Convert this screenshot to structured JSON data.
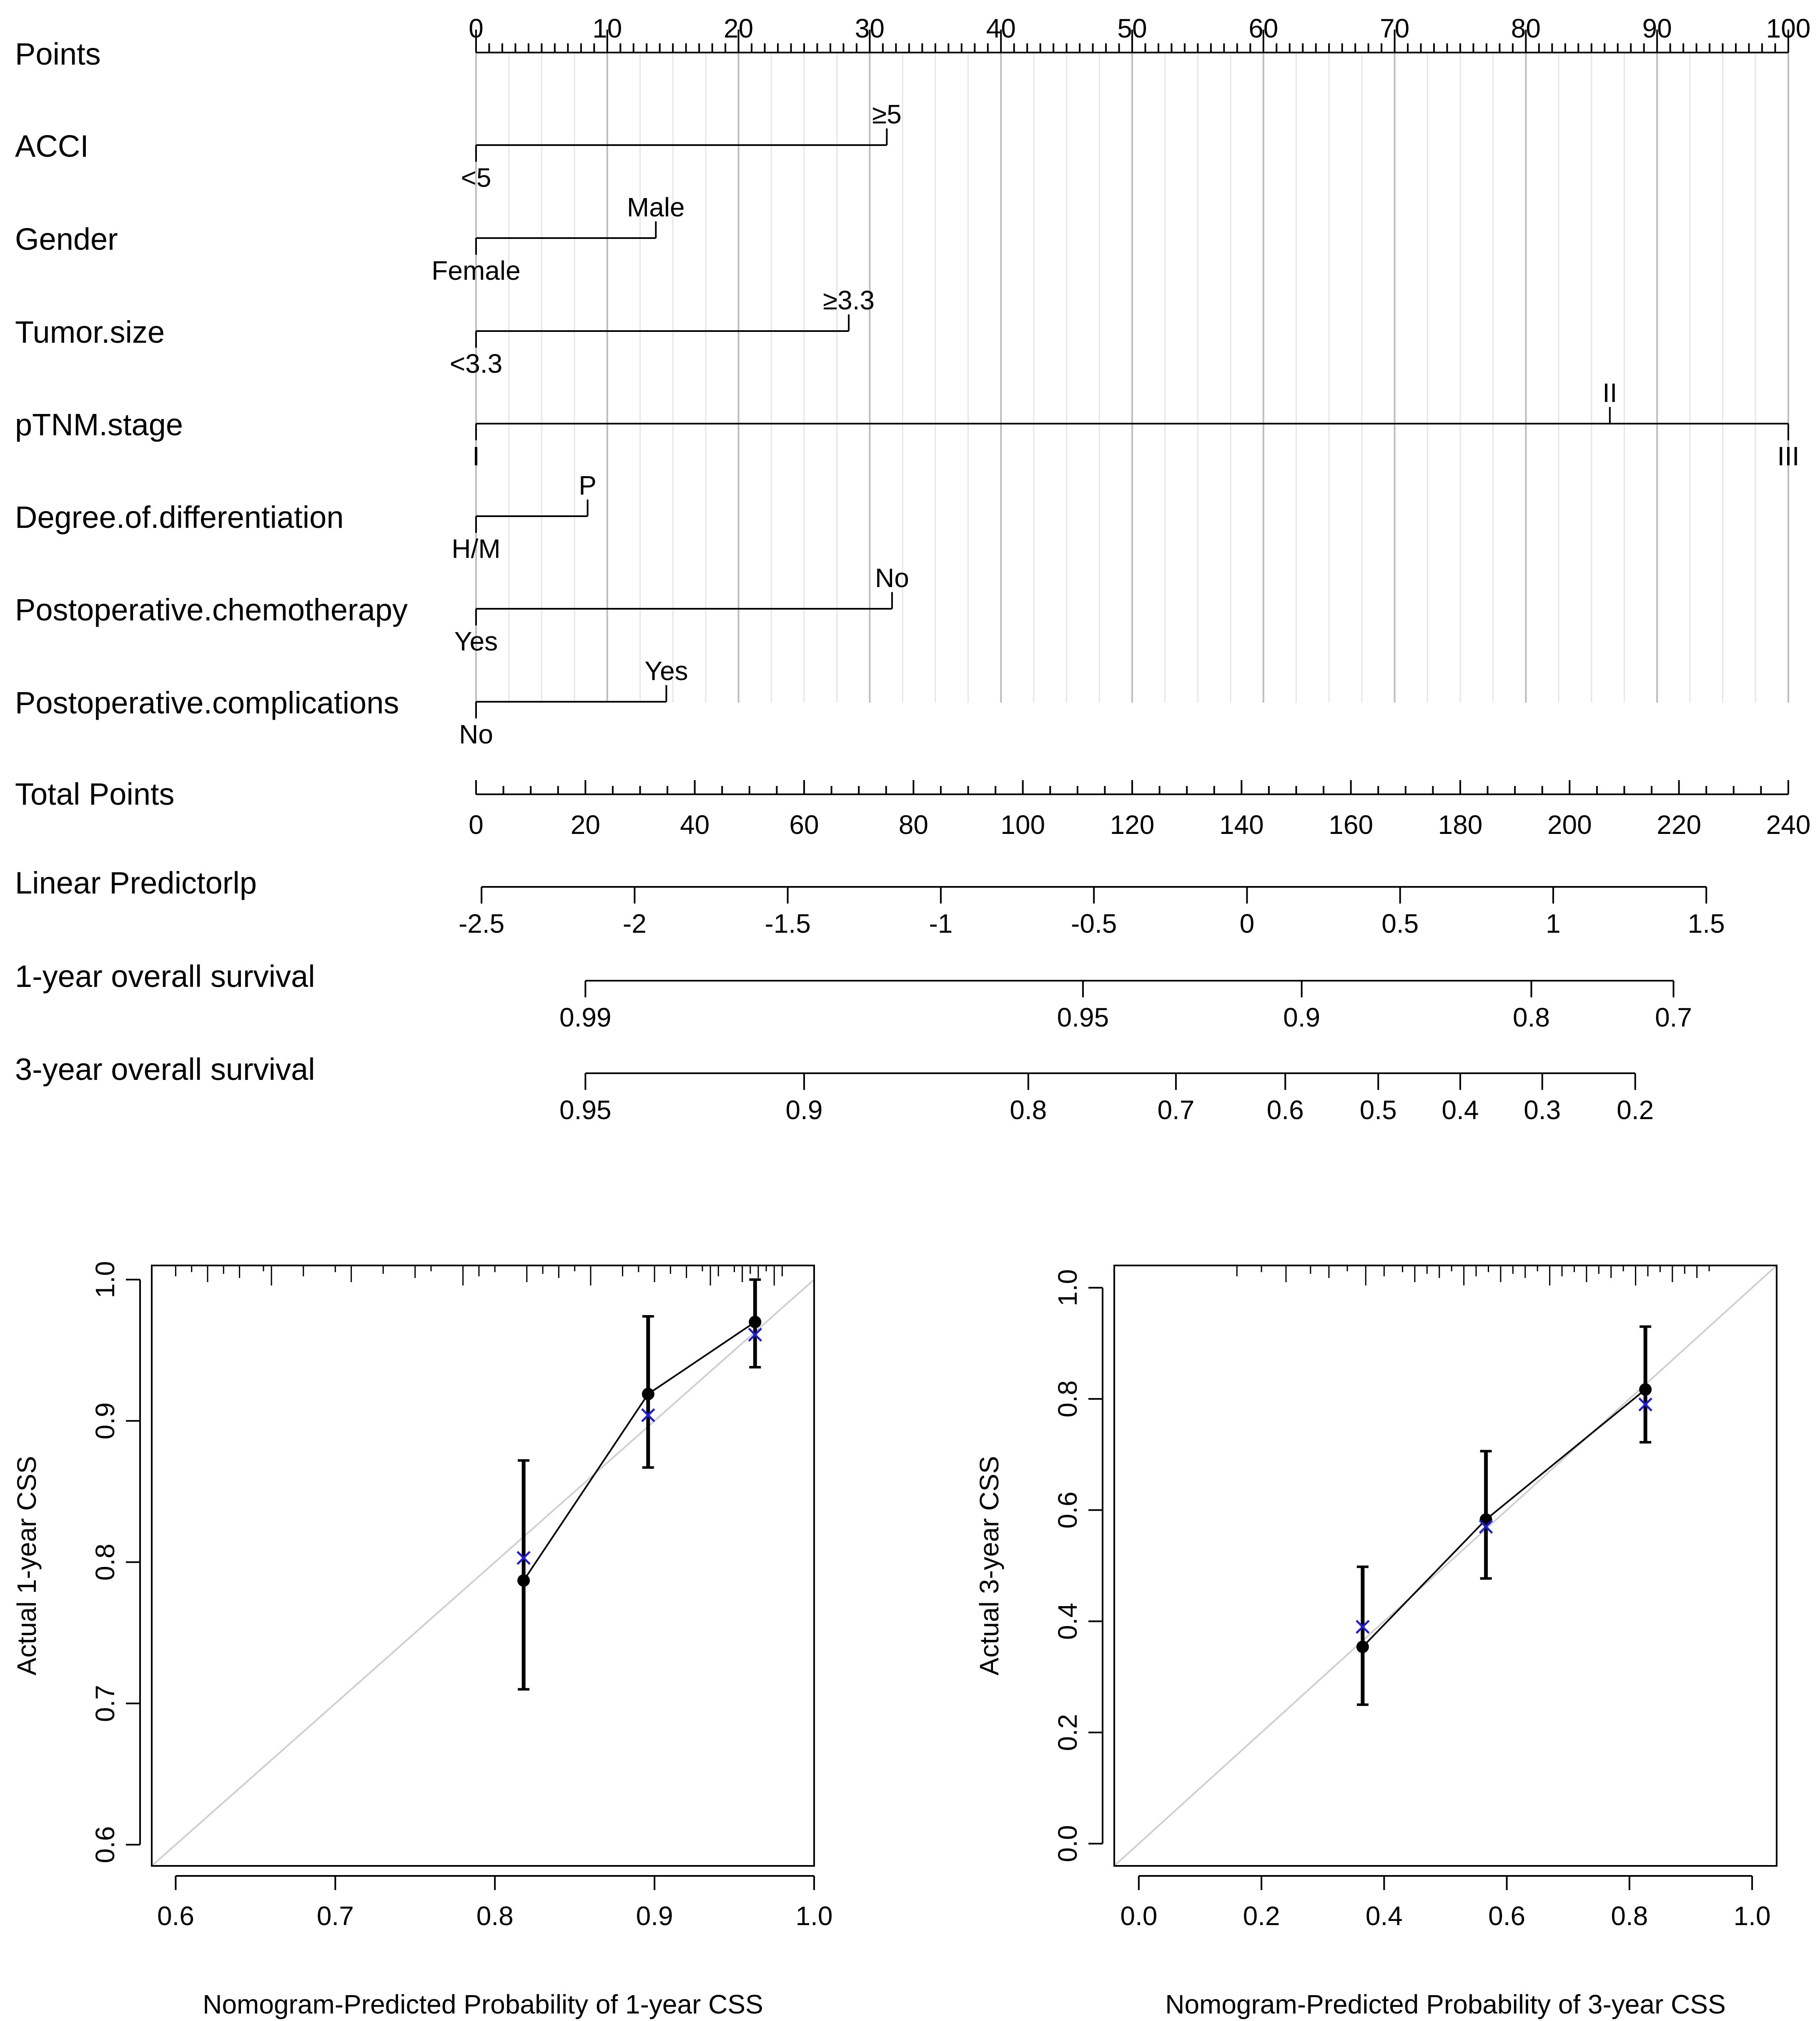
{
  "nomogram": {
    "points_scale": {
      "label": "Points",
      "range": [
        0,
        100
      ],
      "major_ticks": [
        0,
        10,
        20,
        30,
        40,
        50,
        60,
        70,
        80,
        90,
        100
      ],
      "tick_labels": [
        "0",
        "10",
        "20",
        "30",
        "40",
        "50",
        "60",
        "70",
        "80",
        "90",
        "100"
      ]
    },
    "variables": [
      {
        "name": "ACCI",
        "levels": [
          {
            "label": "<5",
            "points": 0
          },
          {
            "label": "≥5",
            "points": 31.3
          }
        ]
      },
      {
        "name": "Gender",
        "levels": [
          {
            "label": "Female",
            "points": 0
          },
          {
            "label": "Male",
            "points": 13.7
          }
        ]
      },
      {
        "name": "Tumor.size",
        "levels": [
          {
            "label": "<3.3",
            "points": 0
          },
          {
            "label": "≥3.3",
            "points": 28.4
          }
        ]
      },
      {
        "name": "pTNM.stage",
        "levels": [
          {
            "label": "I",
            "points": 0
          },
          {
            "label": "II",
            "points": 86.4
          },
          {
            "label": "III",
            "points": 100
          }
        ]
      },
      {
        "name": "Degree.of.differentiation",
        "levels": [
          {
            "label": "H/M",
            "points": 0
          },
          {
            "label": "P",
            "points": 8.5
          }
        ]
      },
      {
        "name": "Postoperative.chemotherapy",
        "levels": [
          {
            "label": "Yes",
            "points": 0
          },
          {
            "label": "No",
            "points": 31.7
          }
        ]
      },
      {
        "name": "Postoperative.complications",
        "levels": [
          {
            "label": "No",
            "points": 0
          },
          {
            "label": "Yes",
            "points": 14.5
          }
        ]
      }
    ],
    "total_points": {
      "label": "Total Points",
      "range": [
        0,
        240
      ],
      "major_ticks": [
        0,
        20,
        40,
        60,
        80,
        100,
        120,
        140,
        160,
        180,
        200,
        220,
        240
      ],
      "tick_labels": [
        "0",
        "20",
        "40",
        "60",
        "80",
        "100",
        "120",
        "140",
        "160",
        "180",
        "200",
        "220",
        "240"
      ]
    },
    "linear_predictor": {
      "label": "Linear Predictorlp",
      "ticks": [
        {
          "label": "-2.5",
          "total_points": 1
        },
        {
          "label": "-2",
          "total_points": 29
        },
        {
          "label": "-1.5",
          "total_points": 57
        },
        {
          "label": "-1",
          "total_points": 85
        },
        {
          "label": "-0.5",
          "total_points": 113
        },
        {
          "label": "0",
          "total_points": 141
        },
        {
          "label": "0.5",
          "total_points": 169
        },
        {
          "label": "1",
          "total_points": 197
        },
        {
          "label": "1.5",
          "total_points": 225
        }
      ]
    },
    "survival_1yr": {
      "label": "1-year overall survival",
      "ticks": [
        {
          "label": "0.99",
          "total_points": 20
        },
        {
          "label": "0.95",
          "total_points": 111
        },
        {
          "label": "0.9",
          "total_points": 151
        },
        {
          "label": "0.8",
          "total_points": 193
        },
        {
          "label": "0.7",
          "total_points": 219
        }
      ]
    },
    "survival_3yr": {
      "label": "3-year overall survival",
      "ticks": [
        {
          "label": "0.95",
          "total_points": 20
        },
        {
          "label": "0.9",
          "total_points": 60
        },
        {
          "label": "0.8",
          "total_points": 101
        },
        {
          "label": "0.7",
          "total_points": 128
        },
        {
          "label": "0.6",
          "total_points": 148
        },
        {
          "label": "0.5",
          "total_points": 165
        },
        {
          "label": "0.4",
          "total_points": 180
        },
        {
          "label": "0.3",
          "total_points": 195
        },
        {
          "label": "0.2",
          "total_points": 212
        }
      ]
    }
  },
  "chart_data": [
    {
      "type": "scatter",
      "title": "",
      "xlabel": "Nomogram-Predicted Probability of 1-year CSS",
      "ylabel": "Actual 1-year CSS",
      "xlim": [
        0.585,
        1.0
      ],
      "ylim": [
        0.585,
        1.01
      ],
      "xticks": [
        0.6,
        0.7,
        0.8,
        0.9,
        1.0
      ],
      "xtick_labels": [
        "0.6",
        "0.7",
        "0.8",
        "0.9",
        "1.0"
      ],
      "yticks": [
        0.6,
        0.7,
        0.8,
        0.9,
        1.0
      ],
      "ytick_labels": [
        "0.6",
        "0.7",
        "0.8",
        "0.9",
        "1.0"
      ],
      "reference_line": "y = x",
      "series": [
        {
          "name": "observed",
          "marker": "dot",
          "x": [
            0.818,
            0.896,
            0.963
          ],
          "y": [
            0.787,
            0.919,
            0.97
          ],
          "lower": [
            0.71,
            0.867,
            0.938
          ],
          "upper": [
            0.872,
            0.974,
            1.0
          ]
        },
        {
          "name": "bias-corrected",
          "marker": "x",
          "color": "#1f1fd0",
          "x": [
            0.818,
            0.896,
            0.963
          ],
          "y": [
            0.803,
            0.904,
            0.961
          ]
        }
      ],
      "rug": [
        0.6,
        0.61,
        0.62,
        0.63,
        0.64,
        0.655,
        0.66,
        0.68,
        0.7,
        0.71,
        0.73,
        0.75,
        0.76,
        0.78,
        0.79,
        0.8,
        0.82,
        0.83,
        0.84,
        0.85,
        0.86,
        0.88,
        0.89,
        0.9,
        0.91,
        0.92,
        0.93,
        0.935,
        0.94,
        0.95,
        0.955,
        0.96,
        0.965,
        0.97,
        0.975,
        0.98
      ]
    },
    {
      "type": "scatter",
      "title": "",
      "xlabel": "Nomogram-Predicted Probability of 3-year CSS",
      "ylabel": "Actual 3-year CSS",
      "xlim": [
        -0.04,
        1.04
      ],
      "ylim": [
        -0.04,
        1.04
      ],
      "xticks": [
        0.0,
        0.2,
        0.4,
        0.6,
        0.8,
        1.0
      ],
      "xtick_labels": [
        "0.0",
        "0.2",
        "0.4",
        "0.6",
        "0.8",
        "1.0"
      ],
      "yticks": [
        0.0,
        0.2,
        0.4,
        0.6,
        0.8,
        1.0
      ],
      "ytick_labels": [
        "0.0",
        "0.2",
        "0.4",
        "0.6",
        "0.8",
        "1.0"
      ],
      "reference_line": "y = x",
      "series": [
        {
          "name": "observed",
          "marker": "dot",
          "x": [
            0.365,
            0.566,
            0.826
          ],
          "y": [
            0.354,
            0.583,
            0.817
          ],
          "lower": [
            0.25,
            0.477,
            0.722
          ],
          "upper": [
            0.498,
            0.706,
            0.93
          ]
        },
        {
          "name": "bias-corrected",
          "marker": "x",
          "color": "#1f1fd0",
          "x": [
            0.365,
            0.566,
            0.826
          ],
          "y": [
            0.39,
            0.57,
            0.79
          ]
        }
      ],
      "rug": [
        0.16,
        0.2,
        0.24,
        0.28,
        0.31,
        0.34,
        0.37,
        0.4,
        0.43,
        0.45,
        0.47,
        0.49,
        0.51,
        0.53,
        0.55,
        0.57,
        0.59,
        0.61,
        0.63,
        0.65,
        0.67,
        0.69,
        0.71,
        0.73,
        0.75,
        0.77,
        0.79,
        0.81,
        0.83,
        0.85,
        0.87,
        0.89,
        0.91,
        0.93
      ]
    }
  ]
}
